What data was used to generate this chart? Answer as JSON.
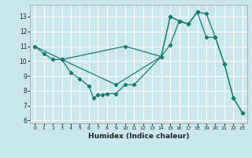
{
  "xlabel": "Humidex (Indice chaleur)",
  "bg_color": "#c8e8ee",
  "grid_color": "#ffffff",
  "line_color": "#1a7a6e",
  "xlim": [
    -0.5,
    23.5
  ],
  "ylim": [
    5.8,
    13.8
  ],
  "xticks": [
    0,
    1,
    2,
    3,
    4,
    5,
    6,
    7,
    8,
    9,
    10,
    11,
    12,
    13,
    14,
    15,
    16,
    17,
    18,
    19,
    20,
    21,
    22,
    23
  ],
  "yticks": [
    6,
    7,
    8,
    9,
    10,
    11,
    12,
    13
  ],
  "series": [
    {
      "x": [
        0,
        1,
        2,
        3
      ],
      "y": [
        11.0,
        10.5,
        10.1,
        10.1
      ]
    },
    {
      "x": [
        3,
        4,
        5,
        6,
        6.5,
        7,
        7.5,
        8,
        9,
        10,
        11,
        14,
        15,
        16,
        17,
        18,
        19,
        20,
        21,
        22,
        23
      ],
      "y": [
        10.1,
        9.2,
        8.8,
        8.3,
        7.5,
        7.7,
        7.7,
        7.8,
        7.8,
        8.4,
        8.4,
        10.3,
        13.0,
        12.7,
        12.5,
        13.3,
        13.2,
        11.6,
        9.8,
        7.5,
        6.5
      ]
    },
    {
      "x": [
        0,
        3,
        10,
        14,
        15,
        16,
        17,
        18,
        19,
        20,
        21,
        22,
        23
      ],
      "y": [
        11.0,
        10.1,
        11.0,
        10.3,
        11.1,
        12.7,
        12.5,
        13.3,
        11.6,
        11.6,
        9.8,
        7.5,
        6.5
      ]
    },
    {
      "x": [
        3,
        9,
        14,
        15,
        16,
        17,
        18
      ],
      "y": [
        10.1,
        8.4,
        10.3,
        13.0,
        12.7,
        12.5,
        13.3
      ]
    }
  ]
}
